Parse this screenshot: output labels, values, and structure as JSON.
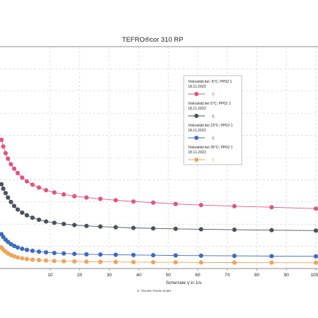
{
  "chart_data": {
    "type": "line",
    "title": "TEFRO®cor 310 RP",
    "xlabel": "Scherrate γ̇ in 1/s",
    "ylabel": "",
    "xlim": [
      -7,
      100
    ],
    "ylim": [
      0,
      100
    ],
    "x_ticks": [
      10,
      20,
      30,
      40,
      50,
      60,
      70,
      80,
      90,
      100
    ],
    "grid": true,
    "legend_position": "top-right",
    "footer": "G. Theodor Freese GmbH",
    "series": [
      {
        "name": "Viskosität bei -5°C; PP02 1 18.11.2022",
        "symbol": "η",
        "color": "#e0557d",
        "x": [
          -6.5,
          -5.9,
          -5.1,
          -4.3,
          -3.3,
          -2.2,
          -1.0,
          0.5,
          2.1,
          4.0,
          6.2,
          8.6,
          11.4,
          14.6,
          18.2,
          22.3,
          27.0,
          32.2,
          38.2,
          44.9,
          52.5,
          61.1,
          72.4,
          85.0,
          100.0
        ],
        "values": [
          58.0,
          55.0,
          52.0,
          49.5,
          47.0,
          45.0,
          43.0,
          41.0,
          39.3,
          37.8,
          36.5,
          35.3,
          34.3,
          33.4,
          32.6,
          32.0,
          31.4,
          30.8,
          30.2,
          29.7,
          29.1,
          28.6,
          28.1,
          27.6,
          27.0
        ]
      },
      {
        "name": "Viskosität bei 5°C; PP02 1 18.11.2022",
        "symbol": "η",
        "color": "#4a5260",
        "x": [
          -6.5,
          -5.9,
          -5.1,
          -4.3,
          -3.3,
          -2.2,
          -1.0,
          0.5,
          2.1,
          4.0,
          6.2,
          8.6,
          11.4,
          14.6,
          18.2,
          22.3,
          27.0,
          32.2,
          38.2,
          44.9,
          52.5,
          61.1,
          72.4,
          85.0,
          100.0
        ],
        "values": [
          38.0,
          36.0,
          34.0,
          32.0,
          30.0,
          28.2,
          26.6,
          25.2,
          24.0,
          22.9,
          22.0,
          21.2,
          20.6,
          20.1,
          19.6,
          19.2,
          18.9,
          18.6,
          18.3,
          18.1,
          17.9,
          17.7,
          17.5,
          17.3,
          17.1
        ]
      },
      {
        "name": "Viskosität bei 23°C; PP02 1 18.11.2022",
        "symbol": "η",
        "color": "#3d6bbf",
        "x": [
          -6.5,
          -5.9,
          -5.1,
          -4.3,
          -3.3,
          -2.2,
          -1.0,
          0.5,
          2.1,
          4.0,
          6.2,
          8.6,
          11.4,
          14.6,
          18.2,
          22.3,
          27.0,
          32.2,
          38.2,
          44.9,
          52.5,
          61.1,
          72.4,
          85.0,
          100.0
        ],
        "values": [
          15.5,
          14.2,
          13.0,
          12.0,
          11.0,
          10.2,
          9.5,
          8.9,
          8.4,
          8.0,
          7.6,
          7.3,
          7.0,
          6.8,
          6.6,
          6.4,
          6.3,
          6.2,
          6.1,
          6.0,
          5.9,
          5.8,
          5.7,
          5.6,
          5.5
        ]
      },
      {
        "name": "Viskosität bei 35°C; PP02 1 18.11.2022",
        "symbol": "η",
        "color": "#f0a35a",
        "x": [
          -6.5,
          -5.9,
          -5.1,
          -4.3,
          -3.3,
          -2.2,
          -1.0,
          0.5,
          2.1,
          4.0,
          6.2,
          8.6,
          11.4,
          14.6,
          18.2,
          22.3,
          27.0,
          32.2,
          38.2,
          44.9,
          52.5,
          61.1,
          72.4,
          85.0,
          100.0
        ],
        "values": [
          9.5,
          8.5,
          7.6,
          6.8,
          6.1,
          5.5,
          5.0,
          4.6,
          4.3,
          4.0,
          3.8,
          3.6,
          3.4,
          3.3,
          3.2,
          3.1,
          3.0,
          2.95,
          2.9,
          2.85,
          2.8,
          2.75,
          2.7,
          2.65,
          2.6
        ]
      }
    ]
  }
}
